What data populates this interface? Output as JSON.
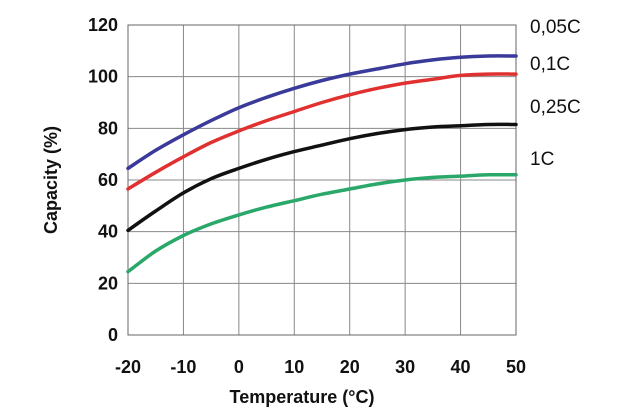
{
  "chart_data": {
    "type": "line",
    "title": "",
    "xlabel": "Temperature (°C)",
    "ylabel": "Capacity (%)",
    "xlim": [
      -20,
      50
    ],
    "ylim": [
      0,
      120
    ],
    "x_ticks": [
      -20,
      -10,
      0,
      10,
      20,
      30,
      40,
      50
    ],
    "y_ticks": [
      0,
      20,
      40,
      60,
      80,
      100,
      120
    ],
    "grid": true,
    "legend": "right, labels next to curve ends",
    "x": [
      -20,
      -15,
      -10,
      -5,
      0,
      5,
      10,
      15,
      20,
      25,
      30,
      35,
      40,
      45,
      50
    ],
    "series": [
      {
        "name": "0,05C",
        "color": "#3a3a9a",
        "values": [
          64.5,
          71.5,
          77.5,
          83,
          88,
          92,
          95.5,
          98.5,
          101,
          103,
          105,
          106.5,
          107.5,
          108,
          108
        ]
      },
      {
        "name": "0,1C",
        "color": "#e03030",
        "values": [
          56.5,
          63,
          69,
          74.5,
          79,
          83,
          86.5,
          90,
          93,
          95.5,
          97.5,
          99,
          100.5,
          101,
          101
        ]
      },
      {
        "name": "0,25C",
        "color": "#111111",
        "values": [
          40.5,
          48,
          55,
          60.5,
          64.5,
          68,
          71,
          73.5,
          76,
          78,
          79.5,
          80.5,
          81,
          81.5,
          81.5
        ]
      },
      {
        "name": "1C",
        "color": "#2aa86a",
        "values": [
          24.5,
          32.5,
          38.5,
          43,
          46.5,
          49.5,
          52,
          54.5,
          56.5,
          58.5,
          60,
          61,
          61.5,
          62,
          62
        ]
      }
    ]
  }
}
